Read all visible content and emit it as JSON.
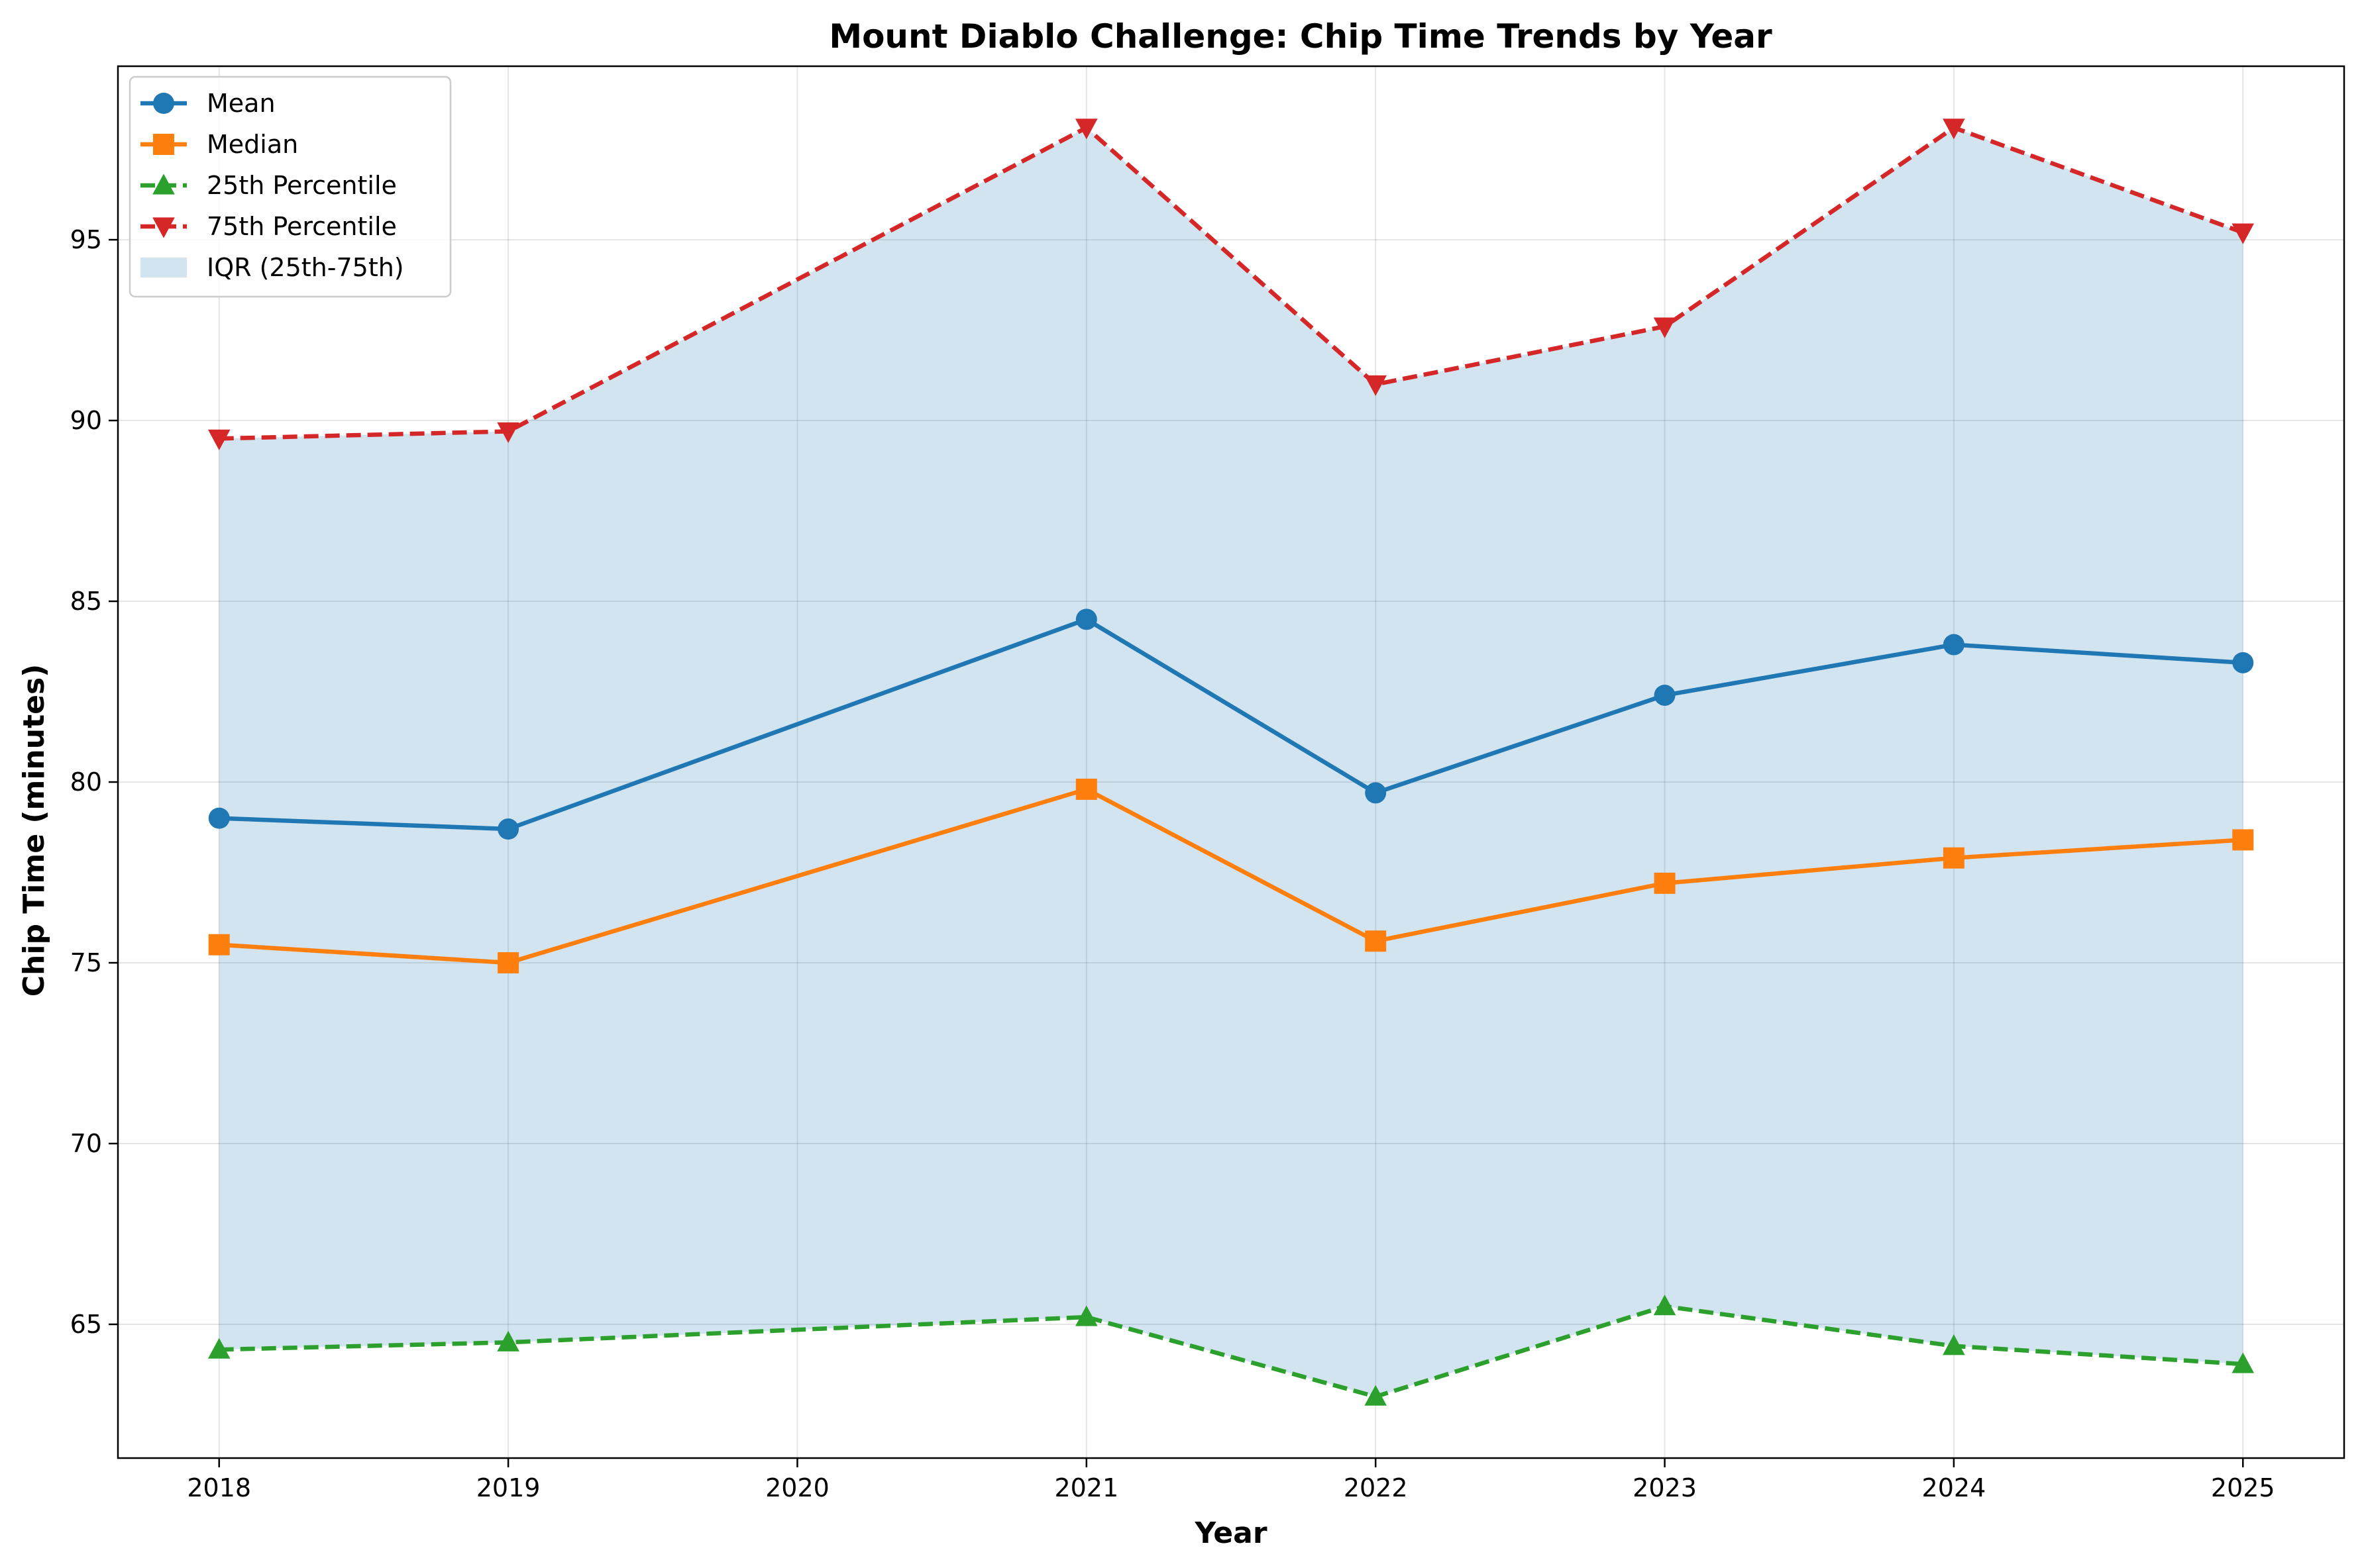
{
  "chart_data": {
    "type": "line",
    "title": "Mount Diablo Challenge: Chip Time Trends by Year",
    "xlabel": "Year",
    "ylabel": "Chip Time (minutes)",
    "x": [
      2018,
      2019,
      2021,
      2022,
      2023,
      2024,
      2025
    ],
    "xticks": [
      2018,
      2019,
      2020,
      2021,
      2022,
      2023,
      2024,
      2025
    ],
    "yticks": [
      65,
      70,
      75,
      80,
      85,
      90,
      95
    ],
    "xlim": [
      2017.65,
      2025.35
    ],
    "ylim": [
      61.3,
      99.8
    ],
    "grid": true,
    "legend_position": "upper-left",
    "series": [
      {
        "name": "Mean",
        "color": "#1f77b4",
        "marker": "circle",
        "dash": "solid",
        "values": [
          79.0,
          78.7,
          84.5,
          79.7,
          82.4,
          83.8,
          83.3
        ]
      },
      {
        "name": "Median",
        "color": "#ff7f0e",
        "marker": "square",
        "dash": "solid",
        "values": [
          75.5,
          75.0,
          79.8,
          75.6,
          77.2,
          77.9,
          78.4
        ]
      },
      {
        "name": "25th Percentile",
        "color": "#2ca02c",
        "marker": "triangle-up",
        "dash": "dashed",
        "values": [
          64.3,
          64.5,
          65.2,
          63.0,
          65.5,
          64.4,
          63.9
        ]
      },
      {
        "name": "75th Percentile",
        "color": "#d62728",
        "marker": "triangle-down",
        "dash": "dashed",
        "values": [
          89.5,
          89.7,
          98.1,
          91.0,
          92.6,
          98.1,
          95.2
        ]
      }
    ],
    "band": {
      "name": "IQR (25th-75th)",
      "color": "#1f77b4",
      "opacity": 0.2,
      "lower_series": "25th Percentile",
      "upper_series": "75th Percentile"
    }
  }
}
